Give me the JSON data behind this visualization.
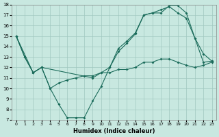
{
  "title": "",
  "xlabel": "Humidex (Indice chaleur)",
  "ylabel": "",
  "background_color": "#c8e8e0",
  "grid_color": "#a0c8c0",
  "line_color": "#1a6b5a",
  "xlim": [
    -0.5,
    23.5
  ],
  "ylim": [
    7,
    18
  ],
  "xticks": [
    0,
    1,
    2,
    3,
    4,
    5,
    6,
    7,
    8,
    9,
    10,
    11,
    12,
    13,
    14,
    15,
    16,
    17,
    18,
    19,
    20,
    21,
    22,
    23
  ],
  "yticks": [
    7,
    8,
    9,
    10,
    11,
    12,
    13,
    14,
    15,
    16,
    17,
    18
  ],
  "series": [
    {
      "x": [
        0,
        1,
        2,
        3,
        4,
        5,
        6,
        7,
        8,
        9,
        10,
        11,
        12,
        13,
        14,
        15,
        16,
        17,
        18,
        19,
        20,
        21,
        22,
        23
      ],
      "y": [
        15.0,
        13.0,
        11.5,
        12.0,
        10.0,
        8.5,
        7.2,
        7.2,
        7.2,
        8.8,
        10.2,
        12.0,
        13.8,
        14.5,
        15.3,
        17.0,
        17.2,
        17.2,
        17.9,
        17.9,
        17.2,
        14.8,
        13.3,
        12.6
      ]
    },
    {
      "x": [
        0,
        2,
        3,
        9,
        10,
        11,
        12,
        13,
        14,
        15,
        16,
        17,
        18,
        19,
        20,
        21,
        22,
        23
      ],
      "y": [
        15.0,
        11.5,
        12.0,
        11.0,
        11.5,
        12.0,
        13.5,
        14.3,
        15.2,
        17.0,
        17.2,
        17.5,
        17.8,
        17.2,
        16.7,
        14.8,
        12.5,
        12.6
      ]
    },
    {
      "x": [
        0,
        1,
        2,
        3,
        4,
        5,
        6,
        7,
        8,
        9,
        10,
        11,
        12,
        13,
        14,
        15,
        16,
        17,
        18,
        19,
        20,
        21,
        22,
        23
      ],
      "y": [
        15.0,
        13.0,
        11.5,
        12.0,
        10.0,
        10.5,
        10.8,
        11.0,
        11.2,
        11.2,
        11.5,
        11.5,
        11.8,
        11.8,
        12.0,
        12.5,
        12.5,
        12.8,
        12.8,
        12.5,
        12.2,
        12.0,
        12.2,
        12.5
      ]
    }
  ]
}
